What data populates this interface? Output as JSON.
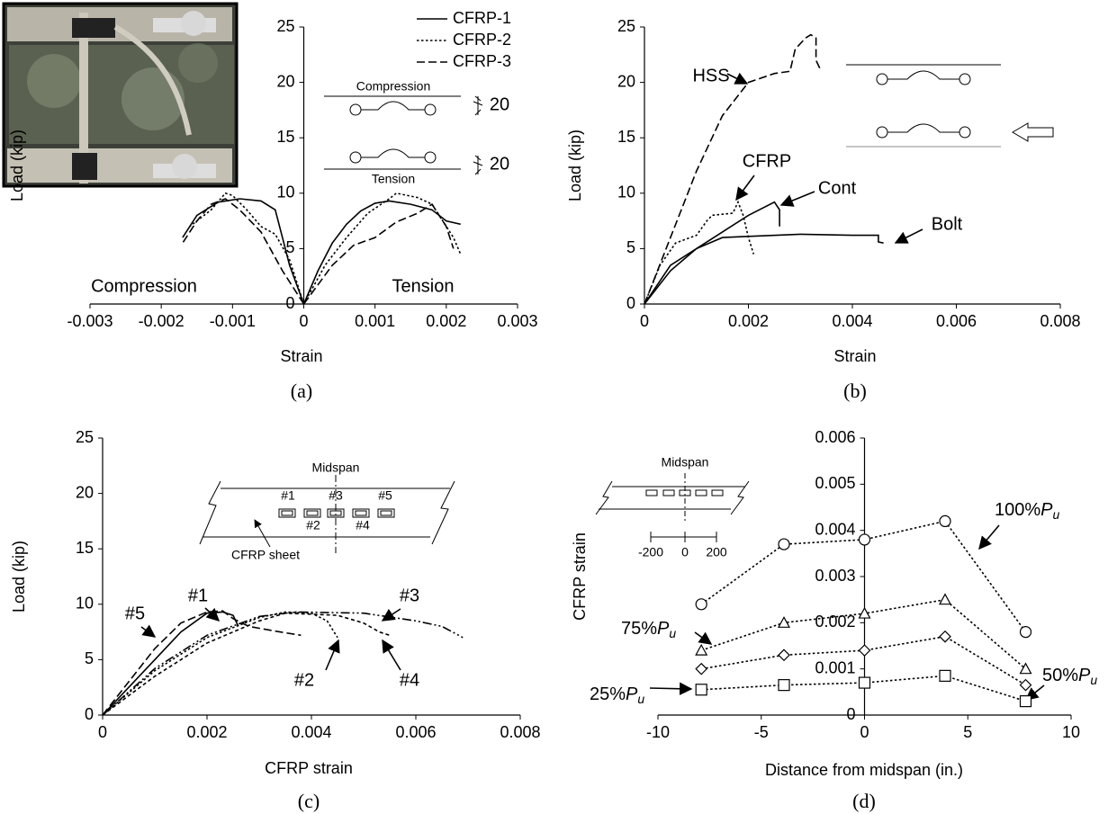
{
  "chart_data": [
    {
      "type": "line",
      "label": "(a)",
      "xlabel": "Strain",
      "ylabel": "Load (kip)",
      "xlim": [
        -0.003,
        0.003
      ],
      "xticks": [
        -0.003,
        -0.002,
        -0.001,
        0,
        0.001,
        0.002,
        0.003
      ],
      "ylim": [
        0,
        25
      ],
      "yticks": [
        0,
        5,
        10,
        15,
        20,
        25
      ],
      "legend": "upper right",
      "series": [
        {
          "name": "CFRP-1",
          "color": "#000000",
          "line_style": "solid",
          "x": [
            0,
            0.0002,
            0.0004,
            0.0006,
            0.0008,
            0.001,
            0.0012,
            0.0015,
            0.0018,
            0.002,
            0.0022,
            null,
            0,
            -0.0002,
            -0.0003,
            -0.0004,
            -0.0006,
            -0.0009,
            -0.0012,
            -0.0015,
            -0.0017
          ],
          "values": [
            0,
            3,
            5.5,
            7.2,
            8.4,
            9.1,
            9.3,
            9,
            8.5,
            7.5,
            7.2,
            null,
            0,
            3.5,
            6,
            8.5,
            9.3,
            9.5,
            9.2,
            8,
            6
          ]
        },
        {
          "name": "CFRP-2",
          "color": "#000000",
          "line_style": "dotted",
          "x": [
            0,
            0.0003,
            0.0006,
            0.0009,
            0.0012,
            0.0013,
            0.0016,
            0.0018,
            0.0021,
            0.0022,
            null,
            0,
            -0.0002,
            -0.0004,
            -0.0006,
            -0.0008,
            -0.001,
            -0.0011,
            -0.0013,
            -0.0016
          ],
          "values": [
            0,
            3.5,
            6,
            8.2,
            9.5,
            10,
            9.6,
            9,
            6,
            4.5,
            null,
            0,
            4,
            6.3,
            7,
            8.5,
            9.8,
            10,
            8.5,
            7
          ]
        },
        {
          "name": "CFRP-3",
          "color": "#000000",
          "line_style": "dashed",
          "x": [
            0,
            0.0004,
            0.0007,
            0.001,
            0.0013,
            0.0016,
            0.0018,
            0.002,
            0.0021,
            null,
            0,
            -0.0003,
            -0.0006,
            -0.0009,
            -0.0011,
            -0.0013,
            -0.0015,
            -0.0017
          ],
          "values": [
            0,
            3.5,
            5.3,
            6,
            7.4,
            8.2,
            9,
            7,
            5,
            null,
            0,
            3,
            6.5,
            8.5,
            9.5,
            9,
            7.5,
            5.5
          ]
        }
      ],
      "annotations": [
        "Compression",
        "Tension",
        "Compression",
        "Tension",
        "20",
        "20"
      ]
    },
    {
      "type": "line",
      "label": "(b)",
      "xlabel": "Strain",
      "ylabel": "Load (kip)",
      "xlim": [
        0,
        0.008
      ],
      "xticks": [
        0,
        0.002,
        0.004,
        0.006,
        0.008
      ],
      "ylim": [
        0,
        25
      ],
      "yticks": [
        0,
        5,
        10,
        15,
        20,
        25
      ],
      "series": [
        {
          "name": "HSS",
          "color": "#000000",
          "line_style": "dashed",
          "x": [
            0,
            0.0005,
            0.001,
            0.0015,
            0.002,
            0.0025,
            0.0028,
            0.0029,
            0.0031,
            0.0032,
            0.0033,
            0.0033,
            0.0034
          ],
          "values": [
            0,
            6,
            12,
            17,
            20,
            20.8,
            21,
            23,
            24,
            24.3,
            24,
            22,
            21
          ]
        },
        {
          "name": "CFRP",
          "color": "#000000",
          "line_style": "dotted",
          "x": [
            0,
            0.0003,
            0.0006,
            0.001,
            0.0012,
            0.0013,
            0.0017,
            0.0018,
            0.0019,
            0.002,
            0.0021
          ],
          "values": [
            0,
            3.5,
            5.5,
            6.2,
            7.5,
            8,
            8.2,
            9.2,
            8,
            6,
            4.5
          ]
        },
        {
          "name": "Cont",
          "color": "#000000",
          "line_style": "solid",
          "x": [
            0,
            0.0005,
            0.001,
            0.0015,
            0.002,
            0.0025,
            0.0026,
            0.0026
          ],
          "values": [
            0,
            3,
            5,
            6.5,
            8,
            9.2,
            8.5,
            7
          ]
        },
        {
          "name": "Bolt",
          "color": "#000000",
          "line_style": "solid",
          "x": [
            0,
            0.0005,
            0.001,
            0.0015,
            0.002,
            0.003,
            0.004,
            0.0045,
            0.0045,
            0.0046
          ],
          "values": [
            0,
            3.5,
            5,
            6,
            6.1,
            6.3,
            6.2,
            6.2,
            5.6,
            5.5
          ]
        }
      ],
      "annotations": []
    },
    {
      "type": "line",
      "label": "(c)",
      "xlabel": "CFRP strain",
      "ylabel": "Load (kip)",
      "xlim": [
        0,
        0.008
      ],
      "xticks": [
        0,
        0.002,
        0.004,
        0.006,
        0.008
      ],
      "ylim": [
        0,
        25
      ],
      "yticks": [
        0,
        5,
        10,
        15,
        20,
        25
      ],
      "series": [
        {
          "name": "#1",
          "color": "#000000",
          "line_style": "solid",
          "x": [
            0,
            0.0005,
            0.001,
            0.0015,
            0.002,
            0.0023,
            0.0025,
            0.0026
          ],
          "values": [
            0,
            2.5,
            5,
            7.5,
            9.2,
            9.3,
            9,
            8
          ]
        },
        {
          "name": "#2",
          "color": "#000000",
          "line_style": "dotted",
          "x": [
            0,
            0.001,
            0.002,
            0.003,
            0.0035,
            0.004,
            0.0043,
            0.0045
          ],
          "values": [
            0,
            4,
            7,
            8.8,
            9.3,
            9.2,
            8.5,
            7
          ]
        },
        {
          "name": "#3",
          "color": "#000000",
          "line_style": "dashdot",
          "x": [
            0,
            0.001,
            0.002,
            0.003,
            0.0037,
            0.005,
            0.006,
            0.0065,
            0.0069
          ],
          "values": [
            0,
            4.2,
            7.2,
            8.9,
            9.3,
            9.2,
            8.5,
            8,
            7
          ]
        },
        {
          "name": "#4",
          "color": "#000000",
          "line_style": "shortdash",
          "x": [
            0,
            0.001,
            0.002,
            0.003,
            0.0035,
            0.0045,
            0.005,
            0.0053,
            0.0055
          ],
          "values": [
            0,
            3.5,
            6.5,
            8.5,
            9.2,
            9,
            8.3,
            7.5,
            7.2
          ]
        },
        {
          "name": "#5",
          "color": "#000000",
          "line_style": "dashed",
          "x": [
            0,
            0.0005,
            0.001,
            0.0015,
            0.002,
            0.0023,
            0.0025,
            0.0028,
            0.0034,
            0.0038
          ],
          "values": [
            0,
            3,
            6,
            8.3,
            9.3,
            9.4,
            8.7,
            8,
            7.5,
            7.2
          ]
        }
      ],
      "annotations": [
        "Midspan",
        "CFRP sheet"
      ]
    },
    {
      "type": "line",
      "label": "(d)",
      "xlabel": "Distance from midspan (in.)",
      "ylabel": "CFRP strain",
      "xlim": [
        -10,
        10
      ],
      "xticks": [
        -10,
        -5,
        0,
        5,
        10
      ],
      "ylim": [
        0,
        0.006
      ],
      "yticks": [
        0,
        0.001,
        0.002,
        0.003,
        0.004,
        0.005,
        0.006
      ],
      "series": [
        {
          "name": "100%Pu",
          "color": "#000000",
          "line_style": "dotted",
          "marker": "circle",
          "x": [
            -7.9,
            -3.9,
            0,
            3.9,
            7.8
          ],
          "values": [
            0.0024,
            0.0037,
            0.0038,
            0.0042,
            0.0018
          ]
        },
        {
          "name": "75%Pu",
          "color": "#000000",
          "line_style": "dotted",
          "marker": "triangle",
          "x": [
            -7.9,
            -3.9,
            0,
            3.9,
            7.8
          ],
          "values": [
            0.0014,
            0.002,
            0.0022,
            0.0025,
            0.001
          ]
        },
        {
          "name": "50%Pu",
          "color": "#000000",
          "line_style": "dotted",
          "marker": "diamond",
          "x": [
            -7.9,
            -3.9,
            0,
            3.9,
            7.8
          ],
          "values": [
            0.001,
            0.0013,
            0.0014,
            0.0017,
            0.00065
          ]
        },
        {
          "name": "25%Pu",
          "color": "#000000",
          "line_style": "dotted",
          "marker": "square",
          "x": [
            -7.9,
            -3.9,
            0,
            3.9,
            7.8
          ],
          "values": [
            0.00055,
            0.00065,
            0.0007,
            0.00085,
            0.0003
          ]
        }
      ],
      "annotations": [
        "Midspan",
        "-200",
        "0",
        "200"
      ]
    }
  ]
}
